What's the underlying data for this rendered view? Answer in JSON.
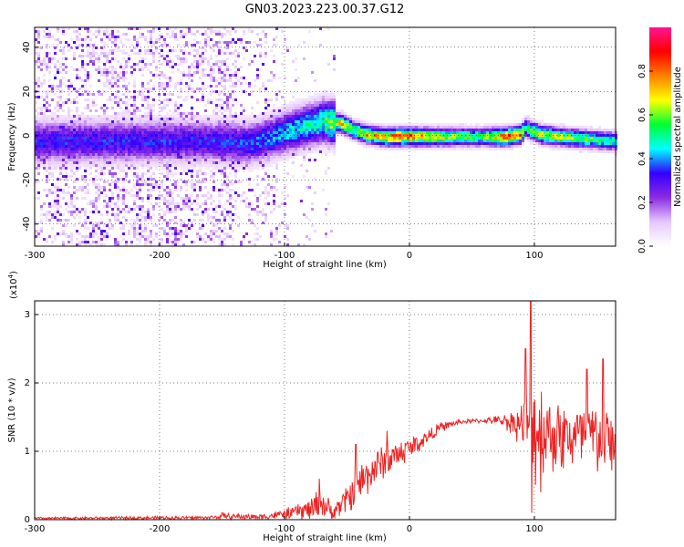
{
  "title": "GN03.2023.223.00.37.G12",
  "chart_data": [
    {
      "type": "heatmap",
      "xlabel": "Height of straight line (km)",
      "ylabel": "Frequency (Hz)",
      "xlim": [
        -300,
        165
      ],
      "ylim": [
        -50,
        49
      ],
      "xticks": [
        -300,
        -200,
        -100,
        0,
        100
      ],
      "yticks": [
        40,
        20,
        0,
        -20,
        -40
      ],
      "colorbar": {
        "label": "Normalized spectral amplitude",
        "range": [
          0,
          1
        ],
        "ticks": [
          "0.0",
          "0.2",
          "0.4",
          "0.6",
          "0.8"
        ],
        "colormap": [
          "#ffffff",
          "#e6c8ff",
          "#8a2be2",
          "#3300ff",
          "#00ffff",
          "#00ff33",
          "#ffff00",
          "#ff8000",
          "#ff0000",
          "#ff1493"
        ]
      },
      "ridge": [
        {
          "x": -160,
          "f": -2,
          "a": 0.35
        },
        {
          "x": -130,
          "f": -3,
          "a": 0.38
        },
        {
          "x": -110,
          "f": 0,
          "a": 0.42
        },
        {
          "x": -90,
          "f": 4,
          "a": 0.48
        },
        {
          "x": -70,
          "f": 7,
          "a": 0.55
        },
        {
          "x": -55,
          "f": 6,
          "a": 0.75
        },
        {
          "x": -45,
          "f": 3,
          "a": 0.6
        },
        {
          "x": -35,
          "f": 1,
          "a": 0.75
        },
        {
          "x": -20,
          "f": 0,
          "a": 0.8
        },
        {
          "x": 0,
          "f": 0,
          "a": 0.85
        },
        {
          "x": 20,
          "f": 0,
          "a": 0.7
        },
        {
          "x": 40,
          "f": 0,
          "a": 0.6
        },
        {
          "x": 60,
          "f": 0,
          "a": 0.6
        },
        {
          "x": 75,
          "f": 0,
          "a": 0.85
        },
        {
          "x": 88,
          "f": 1,
          "a": 0.8
        },
        {
          "x": 92,
          "f": 4,
          "a": 0.55
        },
        {
          "x": 105,
          "f": 1,
          "a": 0.7
        },
        {
          "x": 120,
          "f": 0,
          "a": 0.65
        },
        {
          "x": 140,
          "f": -1,
          "a": 0.6
        },
        {
          "x": 165,
          "f": -2,
          "a": 0.55
        }
      ]
    },
    {
      "type": "line",
      "xlabel": "Height of straight line (km)",
      "ylabel": "SNR (10 * v/v)",
      "yscale_label": "(x10",
      "yscale_exp": "4",
      "yscale_close": ")",
      "xlim": [
        -300,
        165
      ],
      "ylim": [
        0,
        3.2
      ],
      "xticks": [
        -300,
        -200,
        -100,
        0,
        100
      ],
      "yticks": [
        0,
        1,
        2,
        3
      ],
      "color": "#ee2222",
      "envelope": [
        {
          "x": -300,
          "base": 0.02,
          "spread": 0.02
        },
        {
          "x": -160,
          "base": 0.03,
          "spread": 0.03
        },
        {
          "x": -150,
          "base": 0.05,
          "spread": 0.05
        },
        {
          "x": -120,
          "base": 0.04,
          "spread": 0.05
        },
        {
          "x": -100,
          "base": 0.08,
          "spread": 0.08
        },
        {
          "x": -80,
          "base": 0.15,
          "spread": 0.2
        },
        {
          "x": -70,
          "base": 0.25,
          "spread": 0.3
        },
        {
          "x": -62,
          "base": 0.1,
          "spread": 0.12
        },
        {
          "x": -50,
          "base": 0.3,
          "spread": 0.25
        },
        {
          "x": -40,
          "base": 0.55,
          "spread": 0.35
        },
        {
          "x": -25,
          "base": 0.8,
          "spread": 0.3
        },
        {
          "x": -10,
          "base": 0.95,
          "spread": 0.25
        },
        {
          "x": 10,
          "base": 1.15,
          "spread": 0.15
        },
        {
          "x": 25,
          "base": 1.35,
          "spread": 0.08
        },
        {
          "x": 40,
          "base": 1.43,
          "spread": 0.04
        },
        {
          "x": 60,
          "base": 1.45,
          "spread": 0.04
        },
        {
          "x": 75,
          "base": 1.45,
          "spread": 0.1
        },
        {
          "x": 90,
          "base": 1.4,
          "spread": 0.35
        },
        {
          "x": 97,
          "base": 1.4,
          "spread": 1.1
        },
        {
          "x": 110,
          "base": 1.3,
          "spread": 0.7
        },
        {
          "x": 130,
          "base": 1.2,
          "spread": 0.6
        },
        {
          "x": 150,
          "base": 1.2,
          "spread": 0.65
        },
        {
          "x": 165,
          "base": 1.1,
          "spread": 0.5
        }
      ],
      "peaks": [
        {
          "x": 97,
          "y": 3.2
        },
        {
          "x": 93,
          "y": 2.5
        },
        {
          "x": 105,
          "y": 0.4
        },
        {
          "x": 98,
          "y": 0.1
        },
        {
          "x": 142,
          "y": 2.2
        },
        {
          "x": 155,
          "y": 2.35
        },
        {
          "x": -72,
          "y": 0.6
        },
        {
          "x": -150,
          "y": 0.1
        },
        {
          "x": -43,
          "y": 1.1
        },
        {
          "x": -18,
          "y": 1.3
        }
      ]
    }
  ]
}
